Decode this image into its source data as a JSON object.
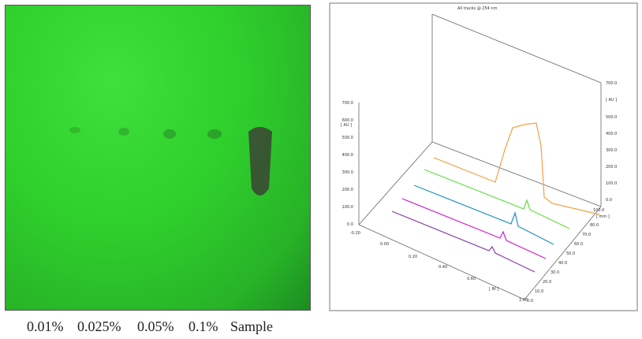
{
  "plate": {
    "lanes": [
      "0.01%",
      "0.025%",
      "0.05%",
      "0.1%",
      "Sample"
    ]
  },
  "densitogram": {
    "title": "All tracks @ 254 nm",
    "left_axis": {
      "unit": "[ AU ]",
      "ticks": [
        "700.0",
        "600.0",
        "500.0",
        "400.0",
        "300.0",
        "200.0",
        "100.0",
        "0.0"
      ]
    },
    "right_axis": {
      "unit": "[ AU ]",
      "ticks": [
        "700.0",
        "500.0",
        "400.0",
        "300.0",
        "200.0",
        "100.0",
        "0.0"
      ]
    },
    "rf_axis": {
      "unit": "[ Rf ]",
      "ticks": [
        "-0.20",
        "0.00",
        "0.20",
        "0.40",
        "0.60",
        "1.00"
      ]
    },
    "mm_axis": {
      "unit": "[ mm ]",
      "ticks": [
        "100.0",
        "80.0",
        "70.0",
        "60.0",
        "50.0",
        "40.0",
        "30.0",
        "20.0",
        "10.0",
        "0.0"
      ]
    }
  }
}
